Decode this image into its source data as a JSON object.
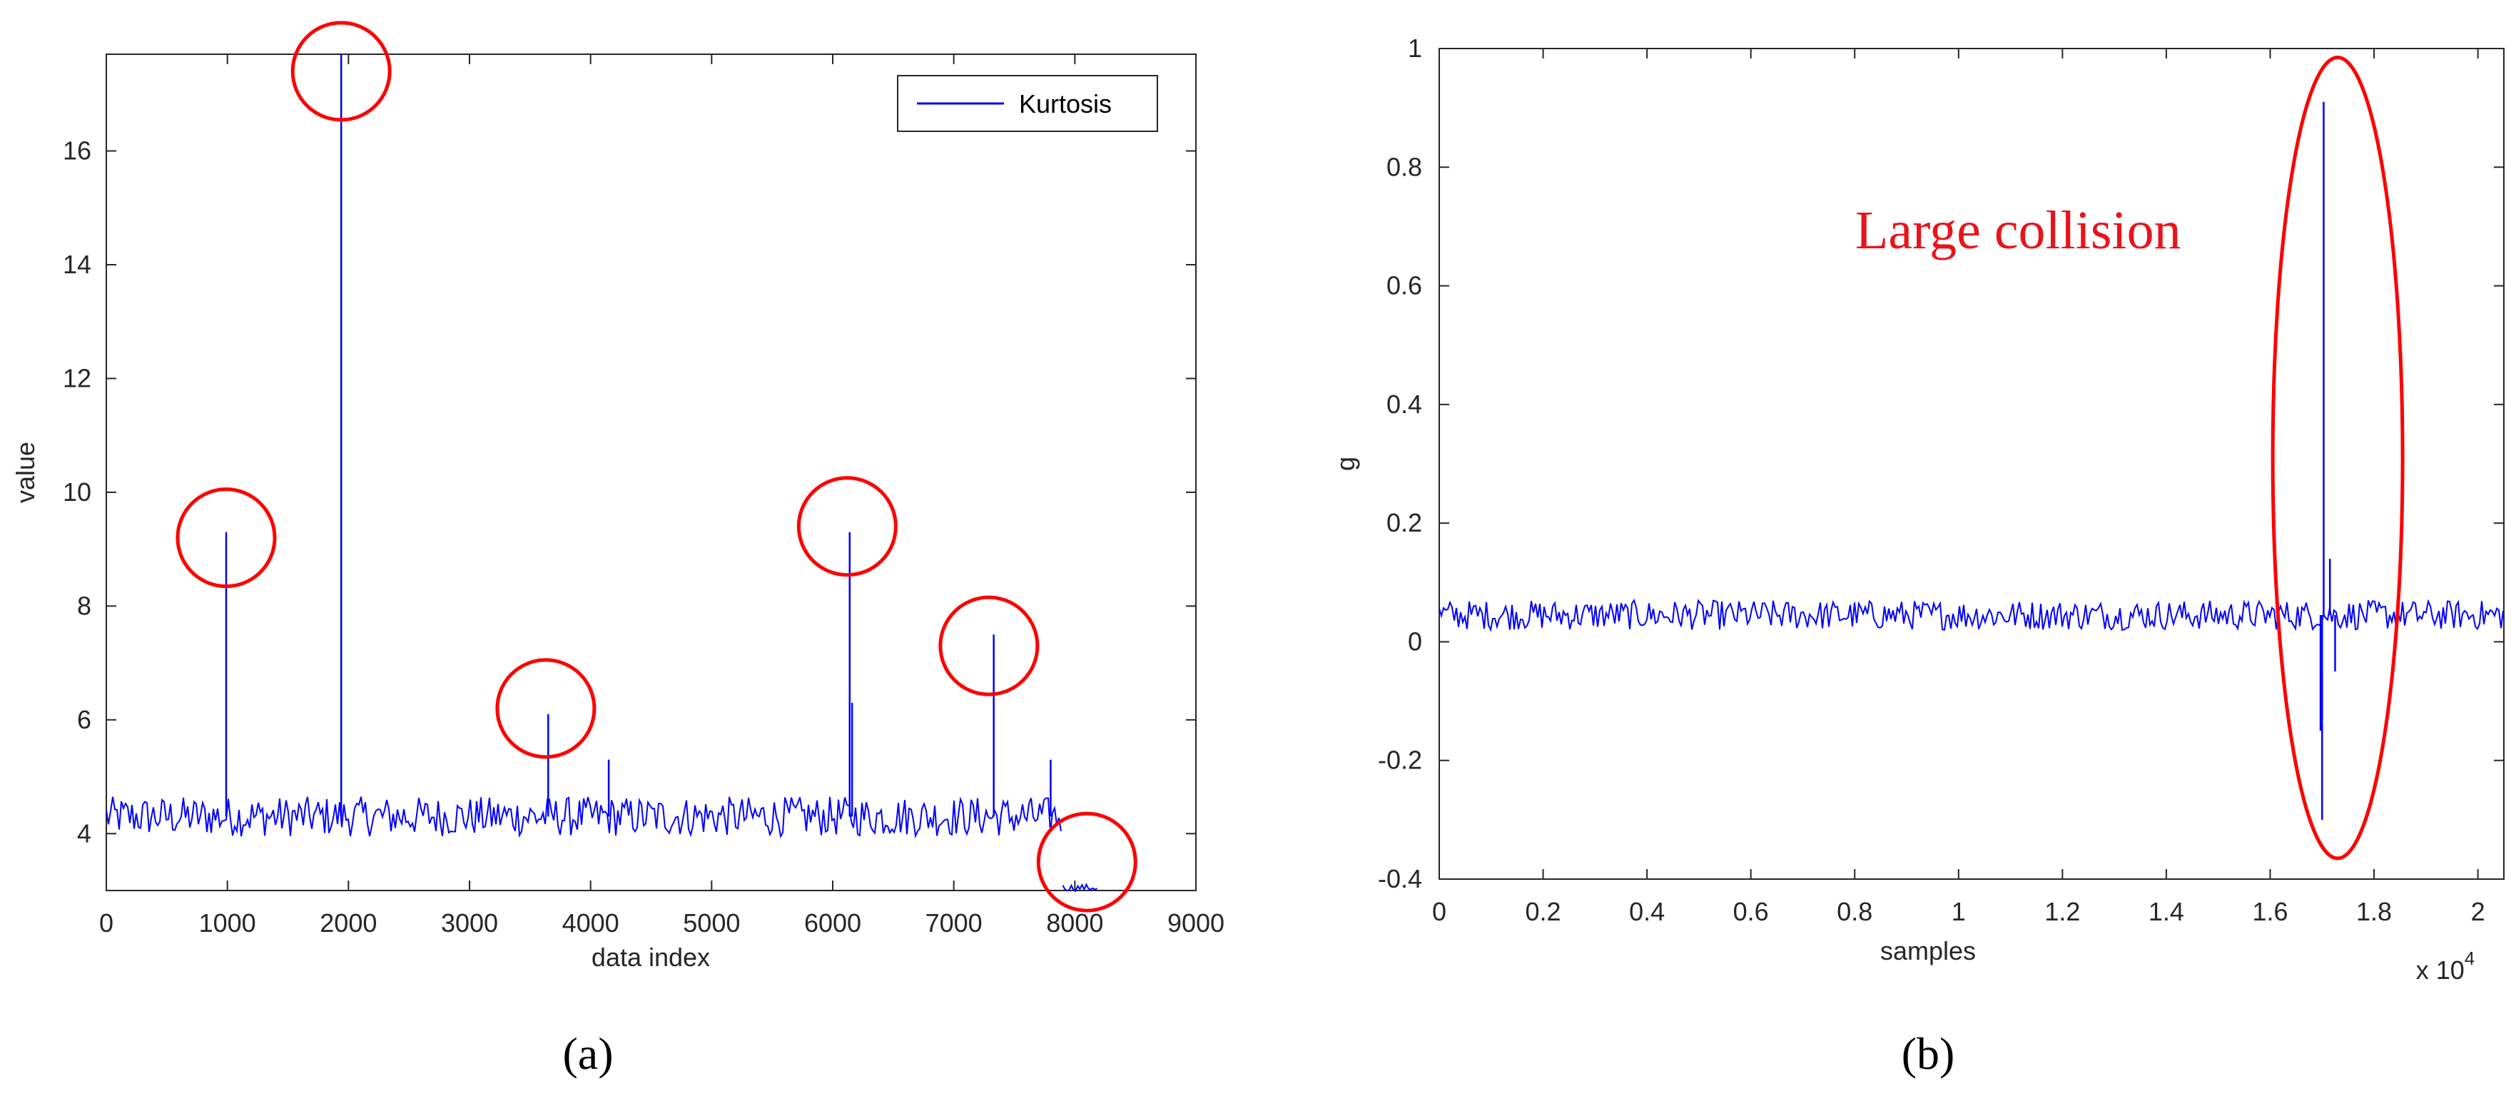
{
  "colors": {
    "series": "#0000ff",
    "marker": "#ff0000",
    "axis": "#262626",
    "annotation": "#e8141c"
  },
  "chart_data": [
    {
      "type": "line",
      "panel_label": "(a)",
      "xlabel": "data index",
      "ylabel": "value",
      "xlim": [
        0,
        9000
      ],
      "ylim": [
        3,
        17.7
      ],
      "xticks": [
        0,
        1000,
        2000,
        3000,
        4000,
        5000,
        6000,
        7000,
        8000,
        9000
      ],
      "xtick_labels": [
        "0",
        "1000",
        "2000",
        "3000",
        "4000",
        "5000",
        "6000",
        "7000",
        "8000",
        "9000"
      ],
      "yticks": [
        4,
        6,
        8,
        10,
        12,
        14,
        16
      ],
      "ytick_labels": [
        "4",
        "6",
        "8",
        "10",
        "12",
        "14",
        "16"
      ],
      "grid": false,
      "legend": {
        "position": "top-right",
        "entries": [
          "Kurtosis"
        ]
      },
      "series": [
        {
          "name": "Kurtosis",
          "baseline_segments": [
            {
              "x_start": 0,
              "x_end": 7900,
              "level": 4.3,
              "spread": 0.35
            },
            {
              "x_start": 7900,
              "x_end": 8200,
              "level": 3.05,
              "spread": 0.06
            }
          ],
          "spikes": [
            {
              "x": 990,
              "y": 9.3
            },
            {
              "x": 1940,
              "y": 17.7
            },
            {
              "x": 3650,
              "y": 6.1
            },
            {
              "x": 4150,
              "y": 5.3
            },
            {
              "x": 6140,
              "y": 9.3
            },
            {
              "x": 6160,
              "y": 6.3
            },
            {
              "x": 7330,
              "y": 7.5
            },
            {
              "x": 7800,
              "y": 5.3
            }
          ]
        }
      ],
      "highlighted_points": [
        {
          "x": 990,
          "y": 9.2
        },
        {
          "x": 1940,
          "y": 17.4
        },
        {
          "x": 3630,
          "y": 6.2
        },
        {
          "x": 6120,
          "y": 9.4
        },
        {
          "x": 7290,
          "y": 7.3
        },
        {
          "x": 8100,
          "y": 3.5
        }
      ]
    },
    {
      "type": "line",
      "panel_label": "(b)",
      "xlabel": "samples",
      "ylabel": "g",
      "x_multiplier": "x 10",
      "x_multiplier_exponent": "4",
      "xlim": [
        0,
        2.05
      ],
      "ylim": [
        -0.4,
        1
      ],
      "xticks": [
        0,
        0.2,
        0.4,
        0.6,
        0.8,
        1,
        1.2,
        1.4,
        1.6,
        1.8,
        2
      ],
      "xtick_labels": [
        "0",
        "0.2",
        "0.4",
        "0.6",
        "0.8",
        "1",
        "1.2",
        "1.4",
        "1.6",
        "1.8",
        "2"
      ],
      "yticks": [
        -0.4,
        -0.2,
        0,
        0.2,
        0.4,
        0.6,
        0.8,
        1
      ],
      "ytick_labels": [
        "-0.4",
        "-0.2",
        "0",
        "0.2",
        "0.4",
        "0.6",
        "0.8",
        "1"
      ],
      "grid": false,
      "series": [
        {
          "name": "",
          "baseline_segments": [
            {
              "x_start": 0,
              "x_end": 2.05,
              "level": 0.045,
              "spread": 0.025
            }
          ],
          "spikes": [
            {
              "x": 1.703,
              "y": 0.91
            },
            {
              "x": 1.7,
              "y": -0.3
            },
            {
              "x": 1.697,
              "y": -0.15
            },
            {
              "x": 1.715,
              "y": 0.14
            },
            {
              "x": 1.725,
              "y": -0.05
            }
          ]
        }
      ],
      "annotation": {
        "text": "Large collision",
        "ellipse_center": {
          "x": 1.73,
          "y": 0.31
        },
        "ellipse_radius": {
          "x": 0.125,
          "y": 0.675
        }
      }
    }
  ]
}
